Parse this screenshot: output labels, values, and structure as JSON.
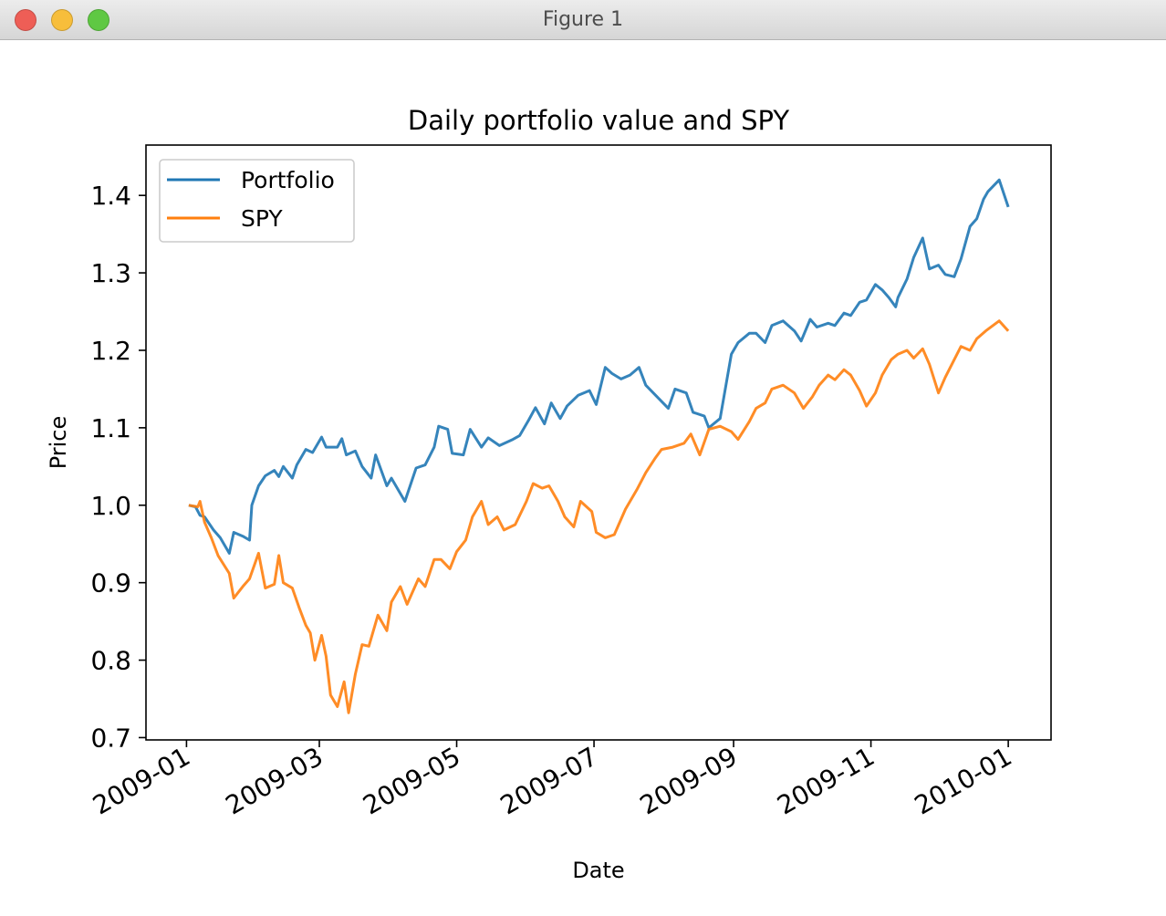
{
  "window": {
    "title": "Figure 1",
    "buttons": [
      {
        "name": "close",
        "color": "#ee5e56"
      },
      {
        "name": "minimize",
        "color": "#f7be3b"
      },
      {
        "name": "maximize",
        "color": "#5fc843"
      }
    ]
  },
  "chart_data": {
    "type": "line",
    "title": "Daily portfolio value and SPY",
    "xlabel": "Date",
    "ylabel": "Price",
    "x_ticks": [
      "2009-01",
      "2009-03",
      "2009-05",
      "2009-07",
      "2009-09",
      "2009-11",
      "2010-01"
    ],
    "y_ticks": [
      "0.7",
      "0.8",
      "0.9",
      "1.0",
      "1.1",
      "1.2",
      "1.3",
      "1.4"
    ],
    "xlim": [
      "2008-12-14",
      "2010-01-20"
    ],
    "ylim": [
      0.697,
      1.465
    ],
    "grid": false,
    "legend_position": "upper-left",
    "series": [
      {
        "name": "Portfolio",
        "color": "#1f77b4",
        "points": [
          [
            "2009-01-02",
            1.0
          ],
          [
            "2009-01-05",
            0.998
          ],
          [
            "2009-01-07",
            0.987
          ],
          [
            "2009-01-09",
            0.985
          ],
          [
            "2009-01-13",
            0.968
          ],
          [
            "2009-01-16",
            0.958
          ],
          [
            "2009-01-20",
            0.938
          ],
          [
            "2009-01-22",
            0.965
          ],
          [
            "2009-01-26",
            0.96
          ],
          [
            "2009-01-29",
            0.955
          ],
          [
            "2009-01-30",
            1.0
          ],
          [
            "2009-02-02",
            1.025
          ],
          [
            "2009-02-05",
            1.038
          ],
          [
            "2009-02-09",
            1.045
          ],
          [
            "2009-02-11",
            1.037
          ],
          [
            "2009-02-13",
            1.05
          ],
          [
            "2009-02-17",
            1.035
          ],
          [
            "2009-02-19",
            1.052
          ],
          [
            "2009-02-23",
            1.072
          ],
          [
            "2009-02-26",
            1.068
          ],
          [
            "2009-03-02",
            1.088
          ],
          [
            "2009-03-04",
            1.075
          ],
          [
            "2009-03-09",
            1.075
          ],
          [
            "2009-03-11",
            1.086
          ],
          [
            "2009-03-13",
            1.065
          ],
          [
            "2009-03-17",
            1.07
          ],
          [
            "2009-03-20",
            1.05
          ],
          [
            "2009-03-24",
            1.035
          ],
          [
            "2009-03-26",
            1.065
          ],
          [
            "2009-03-31",
            1.025
          ],
          [
            "2009-04-02",
            1.035
          ],
          [
            "2009-04-08",
            1.005
          ],
          [
            "2009-04-13",
            1.048
          ],
          [
            "2009-04-17",
            1.052
          ],
          [
            "2009-04-21",
            1.075
          ],
          [
            "2009-04-23",
            1.102
          ],
          [
            "2009-04-27",
            1.098
          ],
          [
            "2009-04-29",
            1.067
          ],
          [
            "2009-05-04",
            1.065
          ],
          [
            "2009-05-07",
            1.098
          ],
          [
            "2009-05-12",
            1.075
          ],
          [
            "2009-05-15",
            1.087
          ],
          [
            "2009-05-20",
            1.077
          ],
          [
            "2009-05-26",
            1.085
          ],
          [
            "2009-05-29",
            1.09
          ],
          [
            "2009-06-02",
            1.11
          ],
          [
            "2009-06-05",
            1.126
          ],
          [
            "2009-06-09",
            1.105
          ],
          [
            "2009-06-12",
            1.132
          ],
          [
            "2009-06-16",
            1.112
          ],
          [
            "2009-06-19",
            1.128
          ],
          [
            "2009-06-24",
            1.142
          ],
          [
            "2009-06-29",
            1.148
          ],
          [
            "2009-07-02",
            1.13
          ],
          [
            "2009-07-06",
            1.178
          ],
          [
            "2009-07-09",
            1.17
          ],
          [
            "2009-07-13",
            1.163
          ],
          [
            "2009-07-17",
            1.168
          ],
          [
            "2009-07-21",
            1.178
          ],
          [
            "2009-07-24",
            1.155
          ],
          [
            "2009-07-29",
            1.14
          ],
          [
            "2009-08-03",
            1.125
          ],
          [
            "2009-08-06",
            1.15
          ],
          [
            "2009-08-11",
            1.145
          ],
          [
            "2009-08-14",
            1.12
          ],
          [
            "2009-08-19",
            1.115
          ],
          [
            "2009-08-21",
            1.1
          ],
          [
            "2009-08-26",
            1.112
          ],
          [
            "2009-08-31",
            1.195
          ],
          [
            "2009-09-03",
            1.21
          ],
          [
            "2009-09-08",
            1.222
          ],
          [
            "2009-09-11",
            1.222
          ],
          [
            "2009-09-15",
            1.21
          ],
          [
            "2009-09-18",
            1.232
          ],
          [
            "2009-09-23",
            1.238
          ],
          [
            "2009-09-28",
            1.225
          ],
          [
            "2009-10-01",
            1.212
          ],
          [
            "2009-10-05",
            1.24
          ],
          [
            "2009-10-08",
            1.23
          ],
          [
            "2009-10-13",
            1.235
          ],
          [
            "2009-10-16",
            1.232
          ],
          [
            "2009-10-20",
            1.248
          ],
          [
            "2009-10-23",
            1.245
          ],
          [
            "2009-10-27",
            1.262
          ],
          [
            "2009-10-30",
            1.265
          ],
          [
            "2009-11-03",
            1.285
          ],
          [
            "2009-11-06",
            1.278
          ],
          [
            "2009-11-09",
            1.268
          ],
          [
            "2009-11-12",
            1.256
          ],
          [
            "2009-11-13",
            1.268
          ],
          [
            "2009-11-17",
            1.292
          ],
          [
            "2009-11-20",
            1.32
          ],
          [
            "2009-11-24",
            1.345
          ],
          [
            "2009-11-27",
            1.305
          ],
          [
            "2009-12-01",
            1.31
          ],
          [
            "2009-12-04",
            1.298
          ],
          [
            "2009-12-08",
            1.295
          ],
          [
            "2009-12-11",
            1.318
          ],
          [
            "2009-12-15",
            1.36
          ],
          [
            "2009-12-18",
            1.37
          ],
          [
            "2009-12-21",
            1.395
          ],
          [
            "2009-12-23",
            1.405
          ],
          [
            "2009-12-28",
            1.42
          ],
          [
            "2010-01-01",
            1.385
          ]
        ]
      },
      {
        "name": "SPY",
        "color": "#ff7f0e",
        "points": [
          [
            "2009-01-02",
            1.0
          ],
          [
            "2009-01-06",
            0.998
          ],
          [
            "2009-01-07",
            1.005
          ],
          [
            "2009-01-09",
            0.978
          ],
          [
            "2009-01-12",
            0.958
          ],
          [
            "2009-01-15",
            0.935
          ],
          [
            "2009-01-20",
            0.912
          ],
          [
            "2009-01-22",
            0.88
          ],
          [
            "2009-01-26",
            0.895
          ],
          [
            "2009-01-29",
            0.905
          ],
          [
            "2009-02-02",
            0.938
          ],
          [
            "2009-02-05",
            0.893
          ],
          [
            "2009-02-09",
            0.898
          ],
          [
            "2009-02-11",
            0.935
          ],
          [
            "2009-02-13",
            0.9
          ],
          [
            "2009-02-17",
            0.893
          ],
          [
            "2009-02-20",
            0.868
          ],
          [
            "2009-02-23",
            0.845
          ],
          [
            "2009-02-25",
            0.835
          ],
          [
            "2009-02-27",
            0.8
          ],
          [
            "2009-03-02",
            0.832
          ],
          [
            "2009-03-04",
            0.805
          ],
          [
            "2009-03-06",
            0.755
          ],
          [
            "2009-03-09",
            0.74
          ],
          [
            "2009-03-12",
            0.772
          ],
          [
            "2009-03-14",
            0.732
          ],
          [
            "2009-03-17",
            0.782
          ],
          [
            "2009-03-20",
            0.82
          ],
          [
            "2009-03-23",
            0.818
          ],
          [
            "2009-03-27",
            0.858
          ],
          [
            "2009-03-31",
            0.838
          ],
          [
            "2009-04-02",
            0.875
          ],
          [
            "2009-04-06",
            0.895
          ],
          [
            "2009-04-09",
            0.872
          ],
          [
            "2009-04-14",
            0.905
          ],
          [
            "2009-04-17",
            0.895
          ],
          [
            "2009-04-21",
            0.93
          ],
          [
            "2009-04-24",
            0.93
          ],
          [
            "2009-04-28",
            0.918
          ],
          [
            "2009-05-01",
            0.94
          ],
          [
            "2009-05-05",
            0.955
          ],
          [
            "2009-05-08",
            0.985
          ],
          [
            "2009-05-12",
            1.005
          ],
          [
            "2009-05-15",
            0.975
          ],
          [
            "2009-05-19",
            0.985
          ],
          [
            "2009-05-22",
            0.968
          ],
          [
            "2009-05-27",
            0.975
          ],
          [
            "2009-06-01",
            1.005
          ],
          [
            "2009-06-04",
            1.028
          ],
          [
            "2009-06-08",
            1.022
          ],
          [
            "2009-06-11",
            1.025
          ],
          [
            "2009-06-15",
            1.005
          ],
          [
            "2009-06-18",
            0.985
          ],
          [
            "2009-06-22",
            0.972
          ],
          [
            "2009-06-25",
            1.005
          ],
          [
            "2009-06-30",
            0.992
          ],
          [
            "2009-07-02",
            0.965
          ],
          [
            "2009-07-06",
            0.958
          ],
          [
            "2009-07-10",
            0.962
          ],
          [
            "2009-07-15",
            0.995
          ],
          [
            "2009-07-20",
            1.02
          ],
          [
            "2009-07-24",
            1.042
          ],
          [
            "2009-07-28",
            1.06
          ],
          [
            "2009-07-31",
            1.072
          ],
          [
            "2009-08-05",
            1.075
          ],
          [
            "2009-08-10",
            1.08
          ],
          [
            "2009-08-13",
            1.092
          ],
          [
            "2009-08-17",
            1.065
          ],
          [
            "2009-08-21",
            1.098
          ],
          [
            "2009-08-26",
            1.102
          ],
          [
            "2009-08-31",
            1.095
          ],
          [
            "2009-09-03",
            1.085
          ],
          [
            "2009-09-08",
            1.108
          ],
          [
            "2009-09-11",
            1.125
          ],
          [
            "2009-09-15",
            1.132
          ],
          [
            "2009-09-18",
            1.15
          ],
          [
            "2009-09-23",
            1.155
          ],
          [
            "2009-09-28",
            1.145
          ],
          [
            "2009-10-02",
            1.125
          ],
          [
            "2009-10-06",
            1.14
          ],
          [
            "2009-10-09",
            1.155
          ],
          [
            "2009-10-13",
            1.168
          ],
          [
            "2009-10-16",
            1.162
          ],
          [
            "2009-10-20",
            1.175
          ],
          [
            "2009-10-23",
            1.168
          ],
          [
            "2009-10-27",
            1.148
          ],
          [
            "2009-10-30",
            1.128
          ],
          [
            "2009-11-03",
            1.145
          ],
          [
            "2009-11-06",
            1.168
          ],
          [
            "2009-11-10",
            1.188
          ],
          [
            "2009-11-13",
            1.195
          ],
          [
            "2009-11-17",
            1.2
          ],
          [
            "2009-11-20",
            1.19
          ],
          [
            "2009-11-24",
            1.202
          ],
          [
            "2009-11-27",
            1.182
          ],
          [
            "2009-12-01",
            1.145
          ],
          [
            "2009-12-04",
            1.165
          ],
          [
            "2009-12-08",
            1.188
          ],
          [
            "2009-12-11",
            1.205
          ],
          [
            "2009-12-15",
            1.2
          ],
          [
            "2009-12-18",
            1.215
          ],
          [
            "2009-12-22",
            1.225
          ],
          [
            "2009-12-28",
            1.238
          ],
          [
            "2010-01-01",
            1.225
          ]
        ]
      }
    ]
  }
}
